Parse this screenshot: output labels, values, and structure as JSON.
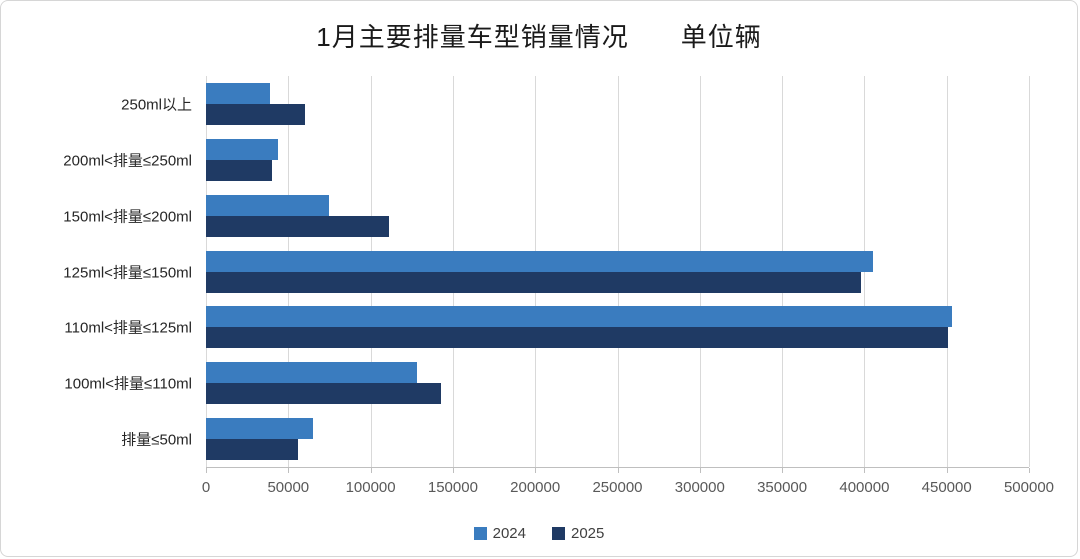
{
  "chart_data": {
    "type": "bar",
    "orientation": "horizontal",
    "title": "1月主要排量车型销量情况",
    "unit_label": "单位辆",
    "categories": [
      "250ml以上",
      "200ml<排量≤250ml",
      "150ml<排量≤200ml",
      "125ml<排量≤150ml",
      "110ml<排量≤125ml",
      "100ml<排量≤110ml",
      "排量≤50ml"
    ],
    "series": [
      {
        "name": "2024",
        "color": "#3A7CBF",
        "values": [
          39000,
          44000,
          75000,
          405000,
          453000,
          128000,
          65000
        ]
      },
      {
        "name": "2025",
        "color": "#1F3A64",
        "values": [
          60000,
          40000,
          111000,
          398000,
          451000,
          143000,
          56000
        ]
      }
    ],
    "xlim": [
      0,
      500000
    ],
    "xtick_step": 50000,
    "xticks": [
      0,
      50000,
      100000,
      150000,
      200000,
      250000,
      300000,
      350000,
      400000,
      450000,
      500000
    ],
    "grid": true,
    "gridline_color": "#d9d9d9",
    "axis_color": "#bfbfbf",
    "tick_label_color": "#595959",
    "legend_position": "bottom"
  }
}
